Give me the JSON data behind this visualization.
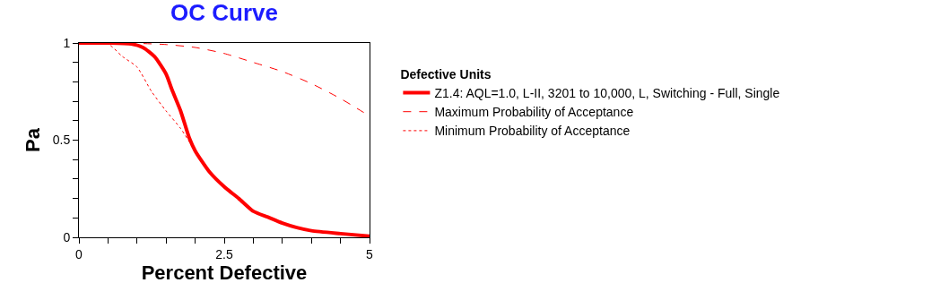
{
  "chart_data": {
    "type": "line",
    "title": "OC Curve",
    "xlabel": "Percent Defective",
    "ylabel": "Pa",
    "legend_title": "Defective Units",
    "legend": "right",
    "xlim": [
      0,
      5
    ],
    "ylim": [
      0,
      1
    ],
    "xticks": [
      0,
      {
        "value": 0.5,
        "label": null
      },
      {
        "value": 1,
        "label": null
      },
      {
        "value": 1.5,
        "label": null
      },
      {
        "value": 2,
        "label": null
      },
      2.5,
      {
        "value": 3,
        "label": null
      },
      {
        "value": 3.5,
        "label": null
      },
      {
        "value": 4,
        "label": null
      },
      {
        "value": 4.5,
        "label": null
      },
      5
    ],
    "yticks": [
      0,
      {
        "value": 0.1,
        "label": null
      },
      {
        "value": 0.2,
        "label": null
      },
      {
        "value": 0.3,
        "label": null
      },
      {
        "value": 0.4,
        "label": null
      },
      0.5,
      {
        "value": 0.6,
        "label": null
      },
      {
        "value": 0.7,
        "label": null
      },
      {
        "value": 0.8,
        "label": null
      },
      {
        "value": 0.9,
        "label": null
      },
      1
    ],
    "grid": false,
    "marker": "none",
    "series": [
      {
        "name": "Z1.4: AQL=1.0, L-II, 3201 to 10,000, L, Switching - Full, Single",
        "color": "#ff0000",
        "line_style": "solid",
        "x": [
          0,
          0.5,
          0.9,
          1.1,
          1.3,
          1.5,
          1.6,
          1.75,
          1.9,
          2,
          2.25,
          2.5,
          2.75,
          3,
          3.25,
          3.5,
          3.75,
          4,
          4.5,
          5
        ],
        "values": [
          1,
          1,
          0.995,
          0.977,
          0.93,
          0.84,
          0.76,
          0.65,
          0.51,
          0.445,
          0.335,
          0.26,
          0.2,
          0.134,
          0.104,
          0.073,
          0.05,
          0.034,
          0.019,
          0.006
        ]
      },
      {
        "name": "Maximum Probability of Acceptance",
        "color": "#ff0000",
        "line_style": "dashed",
        "x": [
          0,
          1,
          1.5,
          2,
          2.5,
          3,
          3.5,
          4,
          4.5,
          5
        ],
        "values": [
          1,
          0.998,
          0.992,
          0.977,
          0.946,
          0.9,
          0.853,
          0.791,
          0.714,
          0.624
        ]
      },
      {
        "name": "Minimum Probability of Acceptance",
        "color": "#ff0000",
        "line_style": "dotted",
        "x": [
          0,
          0.5,
          0.75,
          1,
          1.25,
          1.5,
          1.75,
          2,
          2.25,
          2.5,
          2.75,
          3,
          3.25,
          3.5,
          3.75,
          4,
          4.5,
          5
        ],
        "values": [
          1,
          0.995,
          0.93,
          0.876,
          0.75,
          0.65,
          0.56,
          0.445,
          0.33,
          0.255,
          0.195,
          0.13,
          0.1,
          0.07,
          0.048,
          0.032,
          0.017,
          0.005
        ]
      }
    ]
  }
}
